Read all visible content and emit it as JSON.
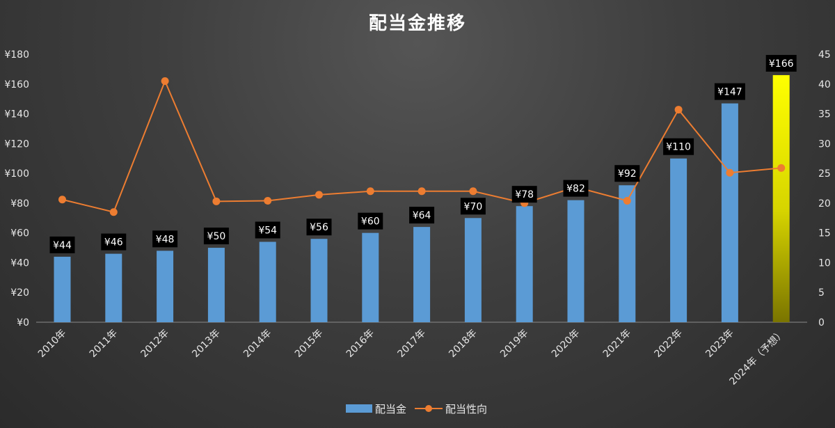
{
  "chart_data": {
    "type": "bar",
    "title": "配当金推移",
    "categories": [
      "2010年",
      "2011年",
      "2012年",
      "2013年",
      "2014年",
      "2015年",
      "2016年",
      "2017年",
      "2018年",
      "2019年",
      "2020年",
      "2021年",
      "2022年",
      "2023年",
      "2024年（予想）"
    ],
    "series": [
      {
        "name": "配当金",
        "type": "bar",
        "axis": "left",
        "values": [
          44,
          46,
          48,
          50,
          54,
          56,
          60,
          64,
          70,
          78,
          82,
          92,
          110,
          147,
          166
        ],
        "data_labels": [
          "¥44",
          "¥46",
          "¥48",
          "¥50",
          "¥54",
          "¥56",
          "¥60",
          "¥64",
          "¥70",
          "¥78",
          "¥82",
          "¥92",
          "¥110",
          "¥147",
          "¥166"
        ],
        "color": "#5b9bd5",
        "highlight_last_color": "#ffff00"
      },
      {
        "name": "配当性向",
        "type": "line",
        "axis": "right",
        "values": [
          20.6,
          18.5,
          40.5,
          20.3,
          20.4,
          21.4,
          22.0,
          22.0,
          22.0,
          20.0,
          22.7,
          20.4,
          35.7,
          25.1,
          25.9
        ],
        "color": "#ed7d31"
      }
    ],
    "y_left": {
      "ylim": [
        0,
        180
      ],
      "ticks": [
        "¥0",
        "¥20",
        "¥40",
        "¥60",
        "¥80",
        "¥100",
        "¥120",
        "¥140",
        "¥160",
        "¥180"
      ]
    },
    "y_right": {
      "ylim": [
        0,
        45
      ],
      "ticks": [
        "0",
        "5",
        "10",
        "15",
        "20",
        "25",
        "30",
        "35",
        "40",
        "45"
      ]
    },
    "grid": false,
    "legend_position": "bottom"
  }
}
